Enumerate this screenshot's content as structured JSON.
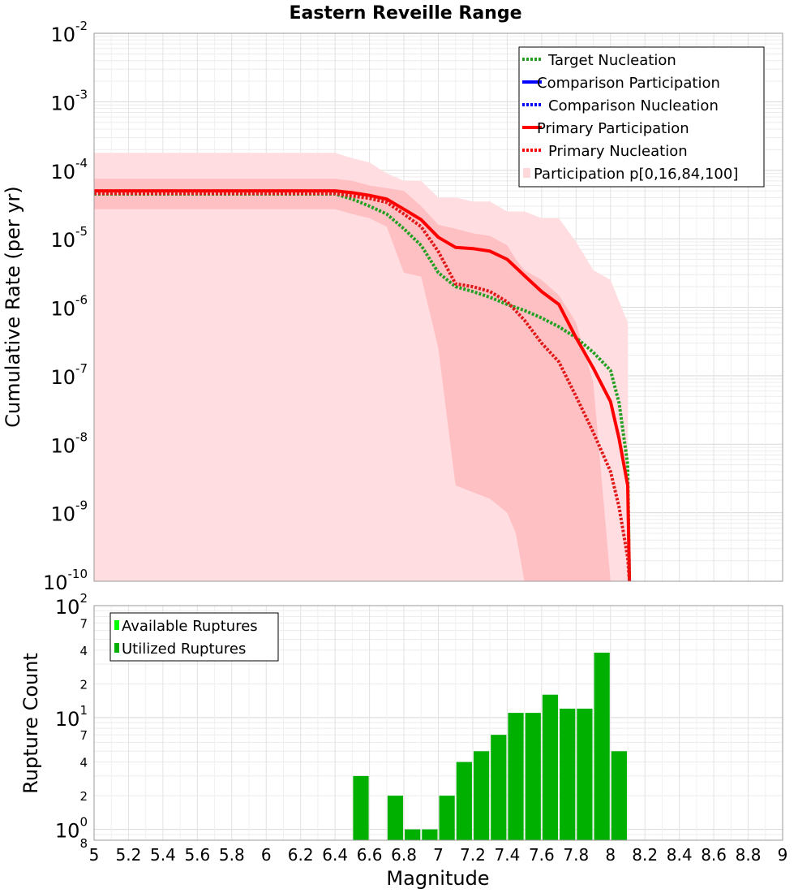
{
  "chart_data": [
    {
      "type": "line",
      "title": "Eastern Reveille Range",
      "ylabel": "Cumulative Rate (per yr)",
      "yscale": "log",
      "xlim": [
        5,
        9
      ],
      "ylim_exp": [
        -10,
        -2
      ],
      "y_tick_exponents": [
        -10,
        -9,
        -8,
        -7,
        -6,
        -5,
        -4,
        -3,
        -2
      ],
      "legend": [
        {
          "label": "Target Nucleation",
          "color": "#22a022",
          "style": "dotted"
        },
        {
          "label": "Comparison Participation",
          "color": "#0000ff",
          "style": "solid"
        },
        {
          "label": "Comparison Nucleation",
          "color": "#0000ff",
          "style": "dotted"
        },
        {
          "label": "Primary Participation",
          "color": "#ff0000",
          "style": "solid"
        },
        {
          "label": "Primary Nucleation",
          "color": "#ff0000",
          "style": "dotted"
        },
        {
          "label": "Participation p[0,16,84,100]",
          "color": "#ffd8dc",
          "style": "box"
        }
      ],
      "bands": {
        "outer": {
          "x": [
            5.0,
            6.4,
            6.5,
            6.6,
            6.7,
            6.8,
            6.9,
            7.0,
            7.1,
            7.2,
            7.3,
            7.4,
            7.5,
            7.6,
            7.7,
            7.8,
            7.9,
            8.0,
            8.1
          ],
          "upper": [
            0.00018,
            0.00018,
            0.00015,
            0.00013,
            9e-05,
            7e-05,
            7e-05,
            4e-05,
            4e-05,
            3.5e-05,
            3.5e-05,
            2.5e-05,
            2.5e-05,
            2e-05,
            2e-05,
            9e-06,
            3.5e-06,
            2.5e-06,
            6e-07
          ],
          "lower": [
            1e-10,
            1e-10,
            1e-10,
            1e-10,
            1e-10,
            1e-10,
            1e-10,
            1e-10,
            1e-10,
            1e-10,
            1e-10,
            1e-10,
            1e-10,
            1e-10,
            1e-10,
            1e-10,
            1e-10,
            1e-10,
            1e-10
          ],
          "color": "#ffdde0"
        },
        "inner": {
          "x": [
            5.0,
            6.4,
            6.5,
            6.6,
            6.7,
            6.8,
            6.9,
            7.0,
            7.1,
            7.2,
            7.3,
            7.4,
            7.45,
            7.5,
            7.6,
            7.7,
            7.8,
            7.9,
            8.0
          ],
          "upper": [
            7.5e-05,
            7.5e-05,
            7e-05,
            6e-05,
            5.5e-05,
            5e-05,
            3e-05,
            1.6e-05,
            1.4e-05,
            1.2e-05,
            1.1e-05,
            8e-06,
            5e-06,
            3.5e-06,
            2.5e-06,
            1.5e-06,
            6e-07,
            8e-08,
            1e-10
          ],
          "lower": [
            2.7e-05,
            2.7e-05,
            2.3e-05,
            2e-05,
            1.5e-05,
            3.2e-06,
            2.8e-06,
            2.5e-07,
            2.5e-09,
            2e-09,
            1.6e-09,
            1e-09,
            5e-10,
            1e-10,
            1e-10,
            1e-10,
            1e-10,
            1e-10,
            1e-10
          ],
          "color": "#ffc0c4"
        }
      },
      "series": [
        {
          "name": "Target Nucleation",
          "color": "#22a022",
          "style": "dotted",
          "x": [
            5.0,
            6.4,
            6.5,
            6.6,
            6.7,
            6.8,
            6.9,
            7.0,
            7.1,
            7.2,
            7.3,
            7.4,
            7.5,
            7.6,
            7.7,
            7.8,
            7.9,
            8.0,
            8.05,
            8.1,
            8.11
          ],
          "y": [
            4.5e-05,
            4.5e-05,
            3.8e-05,
            3e-05,
            2.3e-05,
            1.4e-05,
            8e-06,
            3.2e-06,
            2e-06,
            1.7e-06,
            1.4e-06,
            1.1e-06,
            9e-07,
            7e-07,
            5.2e-07,
            3.6e-07,
            2.2e-07,
            1.2e-07,
            4e-08,
            5e-09,
            1e-10
          ]
        },
        {
          "name": "Primary Participation",
          "color": "#ff0000",
          "style": "solid",
          "x": [
            5.0,
            6.4,
            6.5,
            6.6,
            6.7,
            6.8,
            6.9,
            7.0,
            7.1,
            7.2,
            7.3,
            7.4,
            7.5,
            7.6,
            7.7,
            7.8,
            7.9,
            8.0,
            8.05,
            8.1,
            8.11
          ],
          "y": [
            5e-05,
            5e-05,
            4.7e-05,
            4.3e-05,
            3.8e-05,
            2.7e-05,
            1.9e-05,
            1.05e-05,
            7.5e-06,
            7.2e-06,
            6.6e-06,
            5e-06,
            2.9e-06,
            1.7e-06,
            1.1e-06,
            3.6e-07,
            1.3e-07,
            4.2e-08,
            1.2e-08,
            2.5e-09,
            1e-10
          ]
        },
        {
          "name": "Primary Nucleation",
          "color": "#e01818",
          "style": "dotted",
          "x": [
            5.0,
            6.4,
            6.5,
            6.6,
            6.7,
            6.8,
            6.9,
            7.0,
            7.1,
            7.2,
            7.3,
            7.4,
            7.5,
            7.6,
            7.7,
            7.8,
            7.9,
            8.0,
            8.05,
            8.1,
            8.11
          ],
          "y": [
            4.6e-05,
            4.6e-05,
            4.2e-05,
            3.9e-05,
            3.4e-05,
            2.3e-05,
            1.5e-05,
            6.5e-06,
            2.2e-06,
            2e-06,
            1.7e-06,
            1.2e-06,
            6.5e-07,
            3e-07,
            1.6e-07,
            5e-08,
            1.5e-08,
            4e-09,
            1.2e-09,
            2.2e-10,
            1e-10
          ]
        }
      ]
    },
    {
      "type": "bar",
      "xlabel": "Magnitude",
      "ylabel": "Rupture Count",
      "yscale": "log",
      "ylim": [
        0.8,
        100
      ],
      "x_tick_labels": [
        "5",
        "5.2",
        "5.4",
        "5.6",
        "5.8",
        "6",
        "6.2",
        "6.4",
        "6.6",
        "6.8",
        "7",
        "7.2",
        "7.4",
        "7.6",
        "7.8",
        "8",
        "8.2",
        "8.4",
        "8.6",
        "8.8",
        "9"
      ],
      "legend": [
        {
          "label": "Available Ruptures",
          "color": "#00ff00"
        },
        {
          "label": "Utilized Ruptures",
          "color": "#00b000"
        }
      ],
      "bin_width": 0.1,
      "bar_color": "#00b000",
      "bars": [
        {
          "x": 6.55,
          "value": 3
        },
        {
          "x": 6.75,
          "value": 2
        },
        {
          "x": 6.85,
          "value": 1
        },
        {
          "x": 6.95,
          "value": 1
        },
        {
          "x": 7.05,
          "value": 2
        },
        {
          "x": 7.15,
          "value": 4
        },
        {
          "x": 7.25,
          "value": 5
        },
        {
          "x": 7.35,
          "value": 7
        },
        {
          "x": 7.45,
          "value": 11
        },
        {
          "x": 7.55,
          "value": 11
        },
        {
          "x": 7.65,
          "value": 16
        },
        {
          "x": 7.75,
          "value": 12
        },
        {
          "x": 7.85,
          "value": 12
        },
        {
          "x": 7.95,
          "value": 38
        },
        {
          "x": 8.05,
          "value": 5
        }
      ],
      "y_tick_labels": {
        "major": [
          {
            "value": 1,
            "base": "10",
            "exp": "0"
          },
          {
            "value": 10,
            "base": "10",
            "exp": "1"
          },
          {
            "value": 100,
            "base": "10",
            "exp": "2"
          }
        ],
        "minor": [
          {
            "value": 0.8,
            "label": "8"
          },
          {
            "value": 2,
            "label": "2"
          },
          {
            "value": 4,
            "label": "4"
          },
          {
            "value": 7,
            "label": "7"
          },
          {
            "value": 20,
            "label": "2"
          },
          {
            "value": 40,
            "label": "4"
          },
          {
            "value": 70,
            "label": "7"
          }
        ]
      }
    }
  ]
}
